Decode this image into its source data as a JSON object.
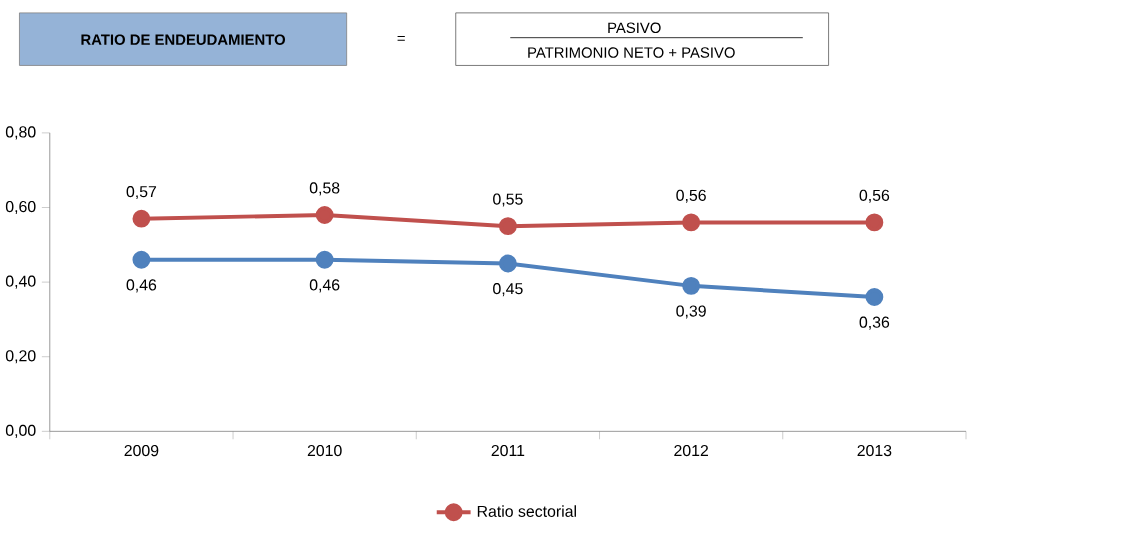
{
  "chart_data": {
    "type": "line",
    "title": "RATIO DE ENDEUDAMIENTO",
    "annotations": [
      "=",
      "PASIVO",
      "PATRIMONIO NETO + PASIVO"
    ],
    "categories": [
      "2009",
      "2010",
      "2011",
      "2012",
      "2013"
    ],
    "series": [
      {
        "color": "#4f81bd",
        "values": [
          0.46,
          0.46,
          0.45,
          0.39,
          0.36
        ],
        "value_labels": [
          "0,46",
          "0,46",
          "0,45",
          "0,39",
          "0,36"
        ]
      },
      {
        "name": "Ratio sectorial",
        "color": "#c0504d",
        "values": [
          0.57,
          0.58,
          0.55,
          0.56,
          0.56
        ],
        "value_labels": [
          "0,57",
          "0,58",
          "0,55",
          "0,56",
          "0,56"
        ]
      }
    ],
    "ylim": [
      0,
      0.8
    ],
    "yticks": [
      {
        "value": 0,
        "label": "0,00"
      },
      {
        "value": 0.2,
        "label": "0,20"
      },
      {
        "value": 0.4,
        "label": "0,40"
      },
      {
        "value": 0.6,
        "label": "0,60"
      },
      {
        "value": 0.8,
        "label": "0,80"
      }
    ],
    "grid": false,
    "legend": "bottom",
    "marker": "circle",
    "line_style": "solid"
  }
}
